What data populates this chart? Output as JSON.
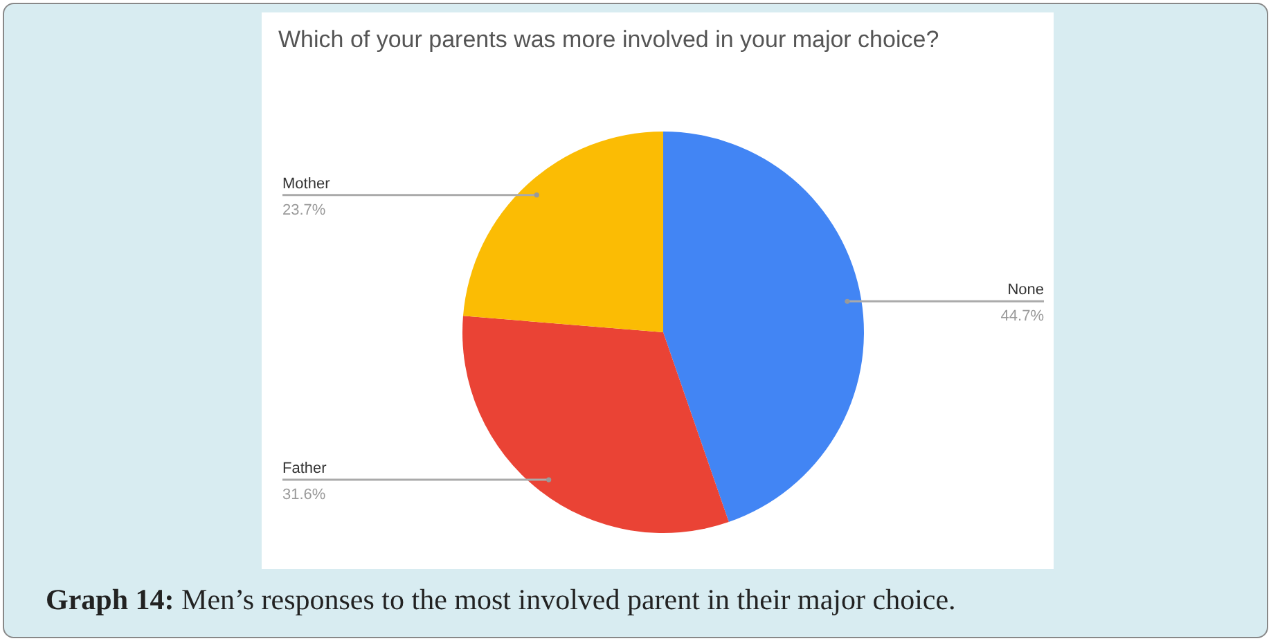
{
  "chart_data": {
    "type": "pie",
    "title": "Which of your parents was more involved in your major choice?",
    "categories": [
      "None",
      "Father",
      "Mother"
    ],
    "values": [
      44.7,
      31.6,
      23.7
    ],
    "colors": [
      "#4285f4",
      "#ea4335",
      "#fbbc04"
    ],
    "value_labels": [
      "44.7%",
      "31.6%",
      "23.7%"
    ],
    "annotations": [
      "Graph 14: Men’s responses to the most involved parent in their major choice."
    ]
  }
}
